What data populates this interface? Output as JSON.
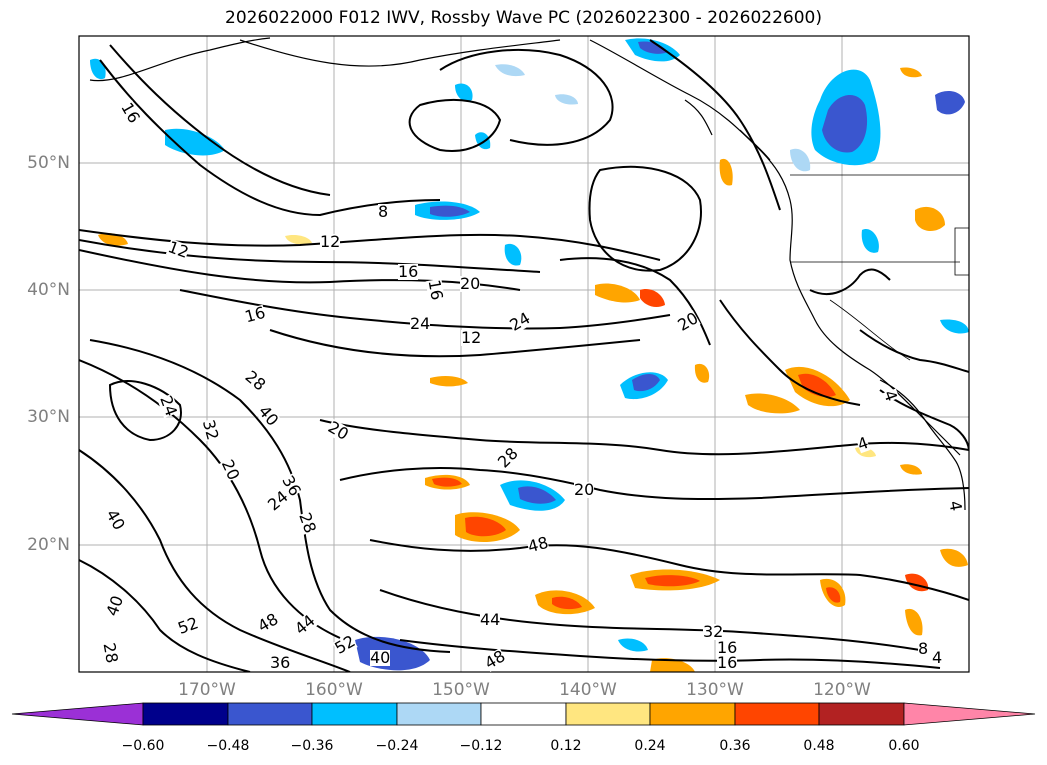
{
  "title": "2026022000 F012 IWV, Rossby Wave PC (2026022300 - 2026022600)",
  "lat_labels": [
    "50°N",
    "40°N",
    "30°N",
    "20°N"
  ],
  "lon_labels": [
    "170°W",
    "160°W",
    "150°W",
    "140°W",
    "130°W",
    "120°W"
  ],
  "colorbar": {
    "ticks": [
      "−0.60",
      "−0.48",
      "−0.36",
      "−0.24",
      "−0.12",
      "0.12",
      "0.24",
      "0.36",
      "0.48",
      "0.60"
    ],
    "colors": [
      "#9b30d6",
      "#00008b",
      "#3a56cf",
      "#00bfff",
      "#add8f5",
      "#ffffff",
      "#ffe680",
      "#ffa500",
      "#ff4500",
      "#b22222",
      "#ff85a8"
    ]
  },
  "contour_labels": [
    "16",
    "8",
    "12",
    "16",
    "20",
    "16",
    "12",
    "24",
    "20",
    "16",
    "12",
    "24",
    "28",
    "24",
    "20",
    "32",
    "40",
    "36",
    "20",
    "24",
    "28",
    "40",
    "28",
    "20",
    "40",
    "48",
    "52",
    "48",
    "44",
    "52",
    "36",
    "40",
    "44",
    "48",
    "28",
    "32",
    "16",
    "16",
    "8",
    "4",
    "4",
    "4",
    "4"
  ],
  "colors": {
    "land_outline": "#000000",
    "contour": "#000000",
    "grid": "#b0b0b0",
    "axis_label": "#808080"
  }
}
